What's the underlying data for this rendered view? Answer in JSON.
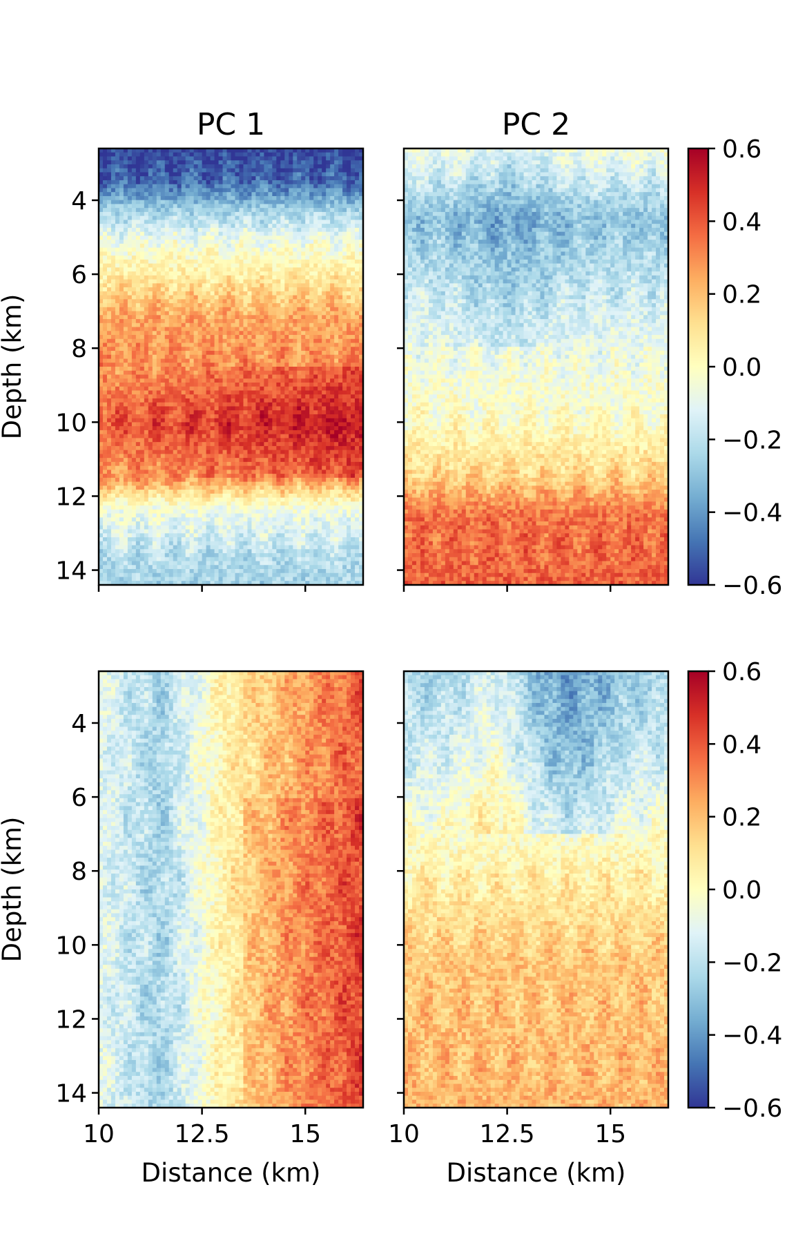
{
  "chart_data": [
    {
      "type": "heatmap",
      "title": "PC 1",
      "xlabel": "",
      "ylabel": "Depth (km)",
      "xlim": [
        10,
        16.4
      ],
      "ylim": [
        14.4,
        2.6
      ],
      "colormap": "RdYlBu_r",
      "clim": [
        -0.6,
        0.6
      ],
      "y_ticks": [
        "4",
        "6",
        "8",
        "10",
        "12",
        "14"
      ],
      "x_ticks": [
        "10",
        "12.5",
        "15"
      ],
      "show_x_ticklabels": false,
      "show_y_ticklabels": true,
      "description_pattern": "depth_profile",
      "depth_profile": [
        {
          "depth": 2.6,
          "value": -0.58
        },
        {
          "depth": 3.5,
          "value": -0.5
        },
        {
          "depth": 4.3,
          "value": -0.25
        },
        {
          "depth": 5.2,
          "value": -0.05
        },
        {
          "depth": 6.2,
          "value": 0.1
        },
        {
          "depth": 7.2,
          "value": 0.25
        },
        {
          "depth": 8.5,
          "value": 0.3
        },
        {
          "depth": 10.0,
          "value": 0.45
        },
        {
          "depth": 11.5,
          "value": 0.3
        },
        {
          "depth": 12.3,
          "value": -0.05
        },
        {
          "depth": 13.5,
          "value": -0.2
        },
        {
          "depth": 14.4,
          "value": -0.25
        }
      ]
    },
    {
      "type": "heatmap",
      "title": "PC 2",
      "xlabel": "",
      "ylabel": "",
      "xlim": [
        10,
        16.4
      ],
      "ylim": [
        14.4,
        2.6
      ],
      "colormap": "RdYlBu_r",
      "clim": [
        -0.6,
        0.6
      ],
      "y_ticks": [
        "4",
        "6",
        "8",
        "10",
        "12",
        "14"
      ],
      "x_ticks": [
        "10",
        "12.5",
        "15"
      ],
      "show_x_ticklabels": false,
      "show_y_ticklabels": false,
      "description_pattern": "depth_profile",
      "depth_profile": [
        {
          "depth": 2.6,
          "value": -0.05
        },
        {
          "depth": 4.5,
          "value": -0.3
        },
        {
          "depth": 6.0,
          "value": -0.2
        },
        {
          "depth": 8.0,
          "value": -0.08
        },
        {
          "depth": 10.0,
          "value": 0.0
        },
        {
          "depth": 11.5,
          "value": 0.15
        },
        {
          "depth": 12.5,
          "value": 0.35
        },
        {
          "depth": 14.4,
          "value": 0.38
        }
      ]
    },
    {
      "type": "heatmap",
      "title": "",
      "xlabel": "Distance (km)",
      "ylabel": "Depth (km)",
      "xlim": [
        10,
        16.4
      ],
      "ylim": [
        14.4,
        2.6
      ],
      "colormap": "RdYlBu_r",
      "clim": [
        -0.6,
        0.6
      ],
      "y_ticks": [
        "4",
        "6",
        "8",
        "10",
        "12",
        "14"
      ],
      "x_ticks": [
        "10",
        "12.5",
        "15"
      ],
      "show_x_ticklabels": true,
      "show_y_ticklabels": true,
      "description_pattern": "horizontal_gradient",
      "horizontal_profile": [
        {
          "distance": 10.0,
          "value": -0.1
        },
        {
          "distance": 11.5,
          "value": -0.25
        },
        {
          "distance": 13.0,
          "value": 0.05
        },
        {
          "distance": 14.5,
          "value": 0.22
        },
        {
          "distance": 16.4,
          "value": 0.4
        }
      ]
    },
    {
      "type": "heatmap",
      "title": "",
      "xlabel": "Distance (km)",
      "ylabel": "",
      "xlim": [
        10,
        16.4
      ],
      "ylim": [
        14.4,
        2.6
      ],
      "colormap": "RdYlBu_r",
      "clim": [
        -0.6,
        0.6
      ],
      "y_ticks": [
        "4",
        "6",
        "8",
        "10",
        "12",
        "14"
      ],
      "x_ticks": [
        "10",
        "12.5",
        "15"
      ],
      "show_x_ticklabels": true,
      "show_y_ticklabels": false,
      "description_pattern": "blue_top_orange_bottom",
      "depth_profile": [
        {
          "depth": 2.6,
          "value": -0.25
        },
        {
          "depth": 5.0,
          "value": -0.15
        },
        {
          "depth": 8.0,
          "value": 0.05
        },
        {
          "depth": 10.5,
          "value": 0.18
        },
        {
          "depth": 14.4,
          "value": 0.22
        }
      ]
    }
  ],
  "colorbars": [
    {
      "ticks": [
        "0.6",
        "0.4",
        "0.2",
        "0.0",
        "−0.2",
        "−0.4",
        "−0.6"
      ]
    },
    {
      "ticks": [
        "0.6",
        "0.4",
        "0.2",
        "0.0",
        "−0.2",
        "−0.4",
        "−0.6"
      ]
    }
  ]
}
